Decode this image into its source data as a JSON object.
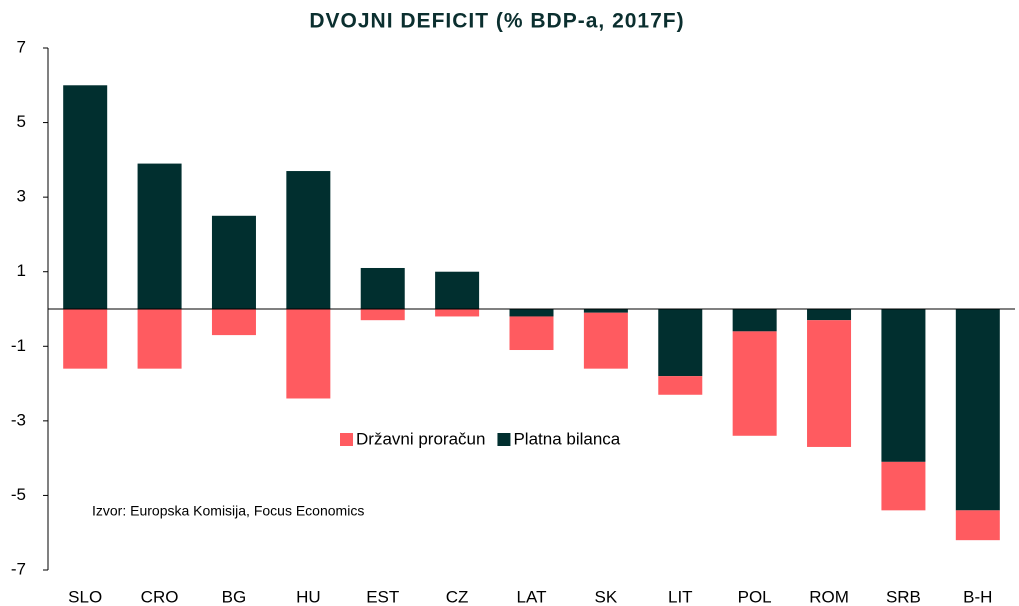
{
  "chart_data": {
    "type": "stacked_bar",
    "title": "DVOJNI DEFICIT (% BDP-a, 2017F)",
    "source": "Izvor: Europska Komisija, Focus Economics",
    "categories": [
      "SLO",
      "CRO",
      "BG",
      "HU",
      "EST",
      "CZ",
      "LAT",
      "SK",
      "LIT",
      "POL",
      "ROM",
      "SRB",
      "B-H"
    ],
    "series": [
      {
        "name": "Državni proračun",
        "color": "#ff5b60",
        "values": [
          -1.6,
          -1.6,
          -0.7,
          -2.4,
          -0.3,
          -0.2,
          -0.9,
          -1.5,
          -0.5,
          -2.8,
          -3.4,
          -1.3,
          -0.8
        ]
      },
      {
        "name": "Platna bilanca",
        "color": "#012f2f",
        "values": [
          6.0,
          3.9,
          2.5,
          3.7,
          1.1,
          1.0,
          -0.2,
          -0.1,
          -1.8,
          -0.6,
          -0.3,
          -4.1,
          -5.4
        ]
      }
    ],
    "ylim": [
      -7,
      7
    ],
    "yticks": [
      -7,
      -5,
      -3,
      -1,
      1,
      3,
      5,
      7
    ],
    "grid": false,
    "legend": "center"
  }
}
